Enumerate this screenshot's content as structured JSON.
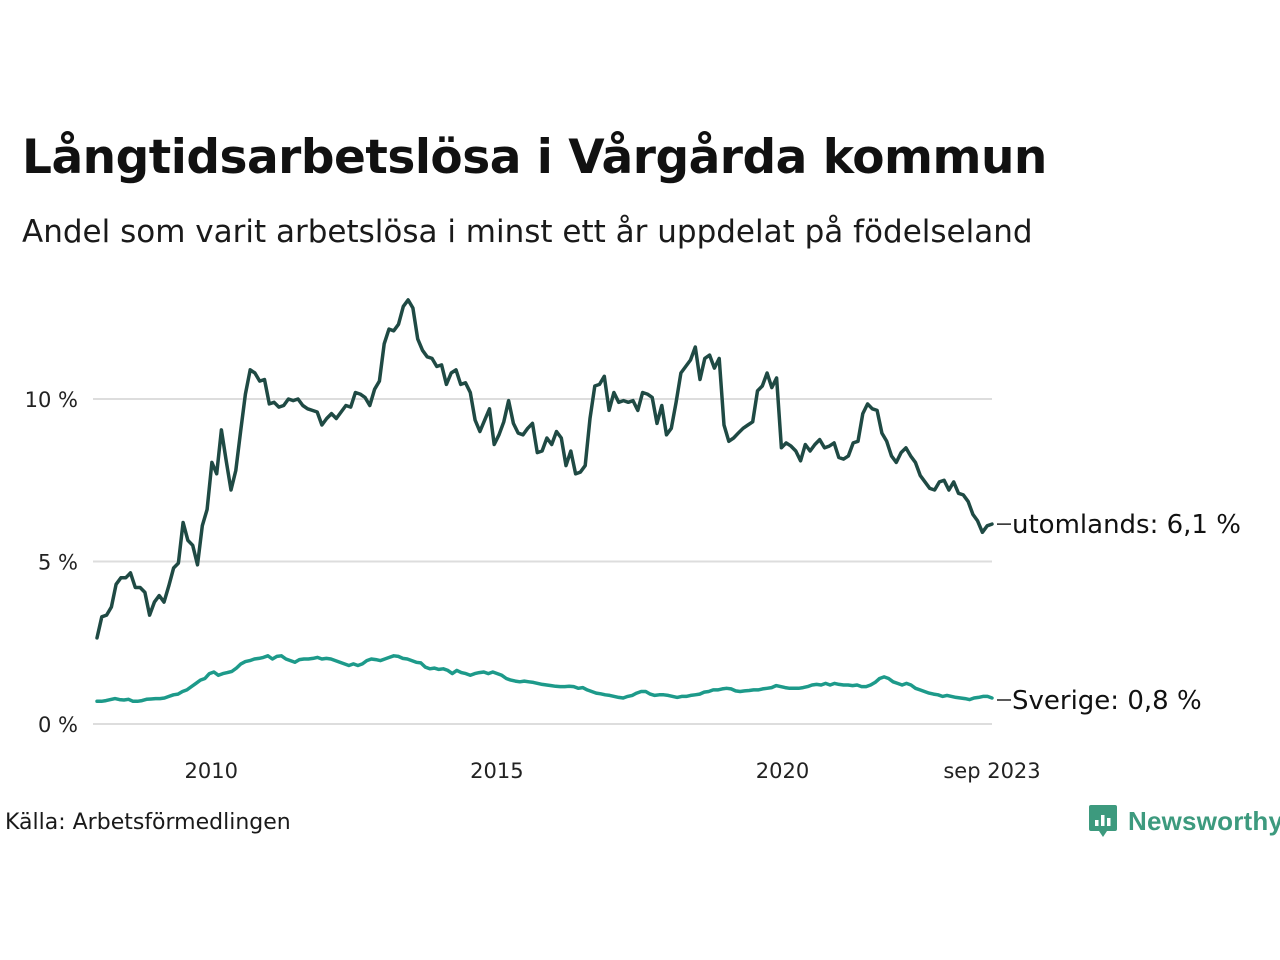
{
  "title": "Långtidsarbetslösa i Vårgårda kommun",
  "subtitle": "Andel som varit arbetslösa i minst ett år uppdelat på födelseland",
  "source": "Källa: Arbetsförmedlingen",
  "brand": "Newsworthy",
  "brand_icon": "newsworthy-logo-icon",
  "colors": {
    "utomlands": "#1f4a44",
    "sverige": "#1d9a8a",
    "grid": "#dddddd",
    "brand": "#3d9a7e"
  },
  "chart_data": {
    "type": "line",
    "title": "Långtidsarbetslösa i Vårgårda kommun",
    "subtitle": "Andel som varit arbetslösa i minst ett år uppdelat på födelseland",
    "x_start": 2008,
    "x_step_months": 1,
    "x_ticks": [
      {
        "value": 2010,
        "label": "2010"
      },
      {
        "value": 2015,
        "label": "2015"
      },
      {
        "value": 2020,
        "label": "2020"
      },
      {
        "value": 2023.667,
        "label": "sep 2023"
      }
    ],
    "y_ticks": [
      {
        "value": 0,
        "label": "0 %"
      },
      {
        "value": 5,
        "label": "5 %"
      },
      {
        "value": 10,
        "label": "10 %"
      }
    ],
    "ylim": [
      0,
      13.3
    ],
    "xlim": [
      2008,
      2023.667
    ],
    "grid": true,
    "xlabel": "",
    "ylabel": "",
    "series": [
      {
        "name": "utomlands",
        "end_label": "utomlands: 6,1 %",
        "values": [
          2.65,
          3.3,
          3.35,
          3.6,
          4.3,
          4.5,
          4.5,
          4.65,
          4.2,
          4.2,
          4.05,
          3.35,
          3.75,
          3.95,
          3.75,
          4.25,
          4.8,
          4.95,
          6.2,
          5.65,
          5.5,
          4.9,
          6.1,
          6.6,
          8.05,
          7.7,
          9.05,
          8.1,
          7.2,
          7.8,
          9.0,
          10.15,
          10.9,
          10.8,
          10.55,
          10.6,
          9.85,
          9.9,
          9.75,
          9.8,
          10.0,
          9.95,
          10.0,
          9.8,
          9.7,
          9.65,
          9.6,
          9.2,
          9.4,
          9.55,
          9.4,
          9.6,
          9.8,
          9.75,
          10.2,
          10.15,
          10.05,
          9.8,
          10.3,
          10.55,
          11.7,
          12.15,
          12.1,
          12.3,
          12.85,
          13.05,
          12.8,
          11.85,
          11.5,
          11.3,
          11.25,
          11.0,
          11.05,
          10.45,
          10.8,
          10.9,
          10.45,
          10.5,
          10.2,
          9.35,
          9.0,
          9.35,
          9.7,
          8.6,
          8.9,
          9.3,
          9.95,
          9.25,
          8.95,
          8.9,
          9.1,
          9.25,
          8.35,
          8.4,
          8.8,
          8.6,
          9.0,
          8.8,
          7.95,
          8.4,
          7.7,
          7.75,
          7.95,
          9.4,
          10.4,
          10.45,
          10.7,
          9.65,
          10.2,
          9.9,
          9.95,
          9.9,
          9.95,
          9.65,
          10.2,
          10.15,
          10.05,
          9.25,
          9.8,
          8.9,
          9.1,
          9.9,
          10.8,
          11.0,
          11.2,
          11.6,
          10.6,
          11.25,
          11.35,
          10.95,
          11.25,
          9.2,
          8.7,
          8.8,
          8.95,
          9.1,
          9.2,
          9.3,
          10.25,
          10.4,
          10.8,
          10.35,
          10.65,
          8.5,
          8.65,
          8.55,
          8.4,
          8.1,
          8.6,
          8.4,
          8.6,
          8.75,
          8.5,
          8.55,
          8.65,
          8.2,
          8.15,
          8.25,
          8.65,
          8.7,
          9.55,
          9.85,
          9.7,
          9.65,
          8.95,
          8.7,
          8.25,
          8.05,
          8.35,
          8.5,
          8.25,
          8.05,
          7.65,
          7.45,
          7.25,
          7.2,
          7.45,
          7.5,
          7.2,
          7.45,
          7.1,
          7.05,
          6.85,
          6.45,
          6.25,
          5.9,
          6.1,
          6.15
        ]
      },
      {
        "name": "Sverige",
        "end_label": "Sverige: 0,8 %",
        "values": [
          0.7,
          0.7,
          0.72,
          0.75,
          0.78,
          0.75,
          0.74,
          0.76,
          0.7,
          0.7,
          0.72,
          0.76,
          0.77,
          0.78,
          0.78,
          0.8,
          0.85,
          0.9,
          0.92,
          1.0,
          1.05,
          1.15,
          1.25,
          1.35,
          1.4,
          1.55,
          1.6,
          1.5,
          1.55,
          1.58,
          1.62,
          1.72,
          1.85,
          1.92,
          1.95,
          2.0,
          2.02,
          2.05,
          2.1,
          2.0,
          2.08,
          2.1,
          2.0,
          1.95,
          1.9,
          1.98,
          2.0,
          2.0,
          2.02,
          2.05,
          2.0,
          2.02,
          2.0,
          1.95,
          1.9,
          1.85,
          1.8,
          1.85,
          1.8,
          1.85,
          1.95,
          2.0,
          1.98,
          1.95,
          2.0,
          2.05,
          2.1,
          2.08,
          2.02,
          2.0,
          1.95,
          1.9,
          1.88,
          1.75,
          1.7,
          1.72,
          1.68,
          1.7,
          1.65,
          1.55,
          1.65,
          1.58,
          1.55,
          1.5,
          1.55,
          1.58,
          1.6,
          1.55,
          1.6,
          1.55,
          1.5,
          1.4,
          1.35,
          1.32,
          1.3,
          1.32,
          1.3,
          1.28,
          1.25,
          1.22,
          1.2,
          1.18,
          1.16,
          1.15,
          1.15,
          1.16,
          1.15,
          1.1,
          1.12,
          1.05,
          1.0,
          0.95,
          0.93,
          0.9,
          0.88,
          0.85,
          0.82,
          0.8,
          0.85,
          0.88,
          0.95,
          1.0,
          1.0,
          0.92,
          0.88,
          0.9,
          0.9,
          0.88,
          0.85,
          0.82,
          0.85,
          0.85,
          0.88,
          0.9,
          0.92,
          0.98,
          1.0,
          1.05,
          1.05,
          1.08,
          1.1,
          1.08,
          1.02,
          1.0,
          1.02,
          1.03,
          1.05,
          1.05,
          1.08,
          1.1,
          1.12,
          1.18,
          1.15,
          1.12,
          1.1,
          1.1,
          1.1,
          1.12,
          1.15,
          1.2,
          1.22,
          1.2,
          1.25,
          1.2,
          1.25,
          1.22,
          1.2,
          1.2,
          1.18,
          1.2,
          1.15,
          1.15,
          1.2,
          1.28,
          1.4,
          1.45,
          1.4,
          1.3,
          1.25,
          1.2,
          1.25,
          1.2,
          1.1,
          1.05,
          1.0,
          0.95,
          0.92,
          0.9,
          0.85,
          0.88,
          0.85,
          0.82,
          0.8,
          0.78,
          0.75,
          0.8,
          0.82,
          0.85,
          0.85,
          0.8
        ]
      }
    ]
  }
}
